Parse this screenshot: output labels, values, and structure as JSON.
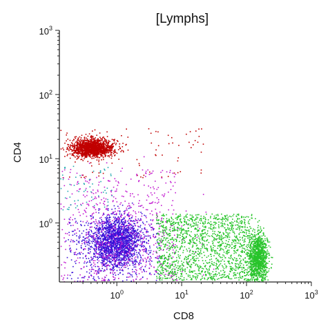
{
  "chart_data": {
    "type": "scatter",
    "title": "[Lymphs]",
    "xlabel": "CD8",
    "ylabel": "CD4",
    "x_scale": "log",
    "y_scale": "log",
    "xlim": [
      0.13,
      1000
    ],
    "ylim": [
      0.12,
      1000
    ],
    "grid": false,
    "x_ticks": [
      {
        "base": "10",
        "exp": "0",
        "value": 1
      },
      {
        "base": "10",
        "exp": "1",
        "value": 10
      },
      {
        "base": "10",
        "exp": "2",
        "value": 100
      },
      {
        "base": "10",
        "exp": "3",
        "value": 1000
      }
    ],
    "y_ticks": [
      {
        "base": "10",
        "exp": "0",
        "value": 1
      },
      {
        "base": "10",
        "exp": "1",
        "value": 10
      },
      {
        "base": "10",
        "exp": "2",
        "value": 100
      },
      {
        "base": "10",
        "exp": "3",
        "value": 1000
      }
    ],
    "series": [
      {
        "color": "#c00000",
        "count": 1500,
        "center": [
          0.42,
          15
        ],
        "spread_decades": [
          0.16,
          0.07
        ],
        "noise_count": 90,
        "noise_x": [
          0.13,
          22
        ],
        "noise_y": [
          5,
          30
        ]
      },
      {
        "color": "#3a10d8",
        "count": 1900,
        "center": [
          0.95,
          0.52
        ],
        "spread_decades": [
          0.2,
          0.2
        ],
        "noise_count": 260,
        "noise_x": [
          0.16,
          4.5
        ],
        "noise_y": [
          0.12,
          1.2
        ]
      },
      {
        "color": "#c21ad0",
        "count": 420,
        "center": [
          1.6,
          0.5
        ],
        "spread_decades": [
          0.5,
          0.45
        ],
        "noise_count": 420,
        "noise_x": [
          0.13,
          8
        ],
        "noise_y": [
          0.12,
          7
        ]
      },
      {
        "color": "#27c42a",
        "count": 1100,
        "center": [
          150,
          0.28
        ],
        "spread_decades": [
          0.07,
          0.2
        ],
        "noise_count": 1500,
        "noise_x": [
          4,
          120
        ],
        "noise_y": [
          0.13,
          1.4
        ]
      },
      {
        "color": "#22a8b0",
        "count": 0,
        "center": [
          0.35,
          4
        ],
        "spread_decades": [
          0.1,
          0.1
        ],
        "noise_count": 60,
        "noise_x": [
          0.13,
          0.9
        ],
        "noise_y": [
          1.5,
          8
        ]
      }
    ]
  }
}
